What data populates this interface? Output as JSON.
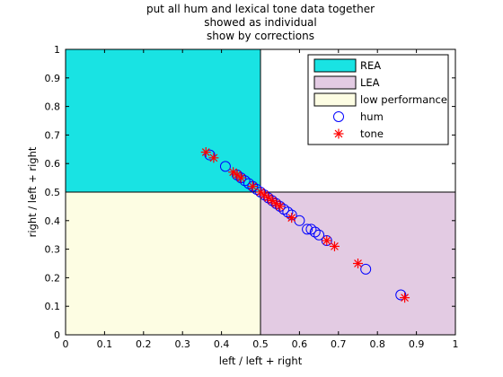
{
  "figure": {
    "title_lines": [
      "put all hum and lexical tone data together",
      "showed as individual",
      "show by corrections"
    ]
  },
  "chart_data": {
    "type": "scatter",
    "title": "put all hum and lexical tone data together\nshowed as individual\nshow by corrections",
    "xlabel": "left / left + right",
    "ylabel": "right / left + right",
    "xlim": [
      0,
      1
    ],
    "ylim": [
      0,
      1
    ],
    "xticks": [
      "0",
      "0.1",
      "0.2",
      "0.3",
      "0.4",
      "0.5",
      "0.6",
      "0.7",
      "0.8",
      "0.9",
      "1"
    ],
    "yticks": [
      "0",
      "0.1",
      "0.2",
      "0.3",
      "0.4",
      "0.5",
      "0.6",
      "0.7",
      "0.8",
      "0.9",
      "1"
    ],
    "grid": false,
    "legend_position": "top-right",
    "regions": [
      {
        "name": "REA",
        "x": [
          0,
          0.5
        ],
        "y": [
          0.5,
          1
        ],
        "color": "#19e3e3"
      },
      {
        "name": "LEA",
        "x": [
          0.5,
          1
        ],
        "y": [
          0,
          0.5
        ],
        "color": "#e3cbe3"
      },
      {
        "name": "low performance",
        "x": [
          0,
          0.5
        ],
        "y": [
          0,
          0.5
        ],
        "color": "#fdfde3"
      }
    ],
    "series": [
      {
        "name": "hum",
        "marker": "circle",
        "color": "#0000ff",
        "x": [
          0.37,
          0.41,
          0.44,
          0.45,
          0.46,
          0.47,
          0.48,
          0.49,
          0.5,
          0.51,
          0.52,
          0.53,
          0.54,
          0.55,
          0.56,
          0.57,
          0.58,
          0.6,
          0.62,
          0.63,
          0.64,
          0.65,
          0.67,
          0.77,
          0.86
        ],
        "y": [
          0.63,
          0.59,
          0.56,
          0.55,
          0.54,
          0.53,
          0.52,
          0.51,
          0.5,
          0.49,
          0.48,
          0.47,
          0.46,
          0.45,
          0.44,
          0.43,
          0.42,
          0.4,
          0.37,
          0.37,
          0.36,
          0.35,
          0.33,
          0.23,
          0.14
        ]
      },
      {
        "name": "tone",
        "marker": "star",
        "color": "#ff0000",
        "x": [
          0.36,
          0.38,
          0.43,
          0.44,
          0.45,
          0.48,
          0.5,
          0.51,
          0.52,
          0.53,
          0.54,
          0.55,
          0.58,
          0.67,
          0.69,
          0.75,
          0.87
        ],
        "y": [
          0.64,
          0.62,
          0.57,
          0.56,
          0.55,
          0.52,
          0.5,
          0.49,
          0.48,
          0.47,
          0.46,
          0.45,
          0.41,
          0.33,
          0.31,
          0.25,
          0.13
        ]
      }
    ]
  }
}
